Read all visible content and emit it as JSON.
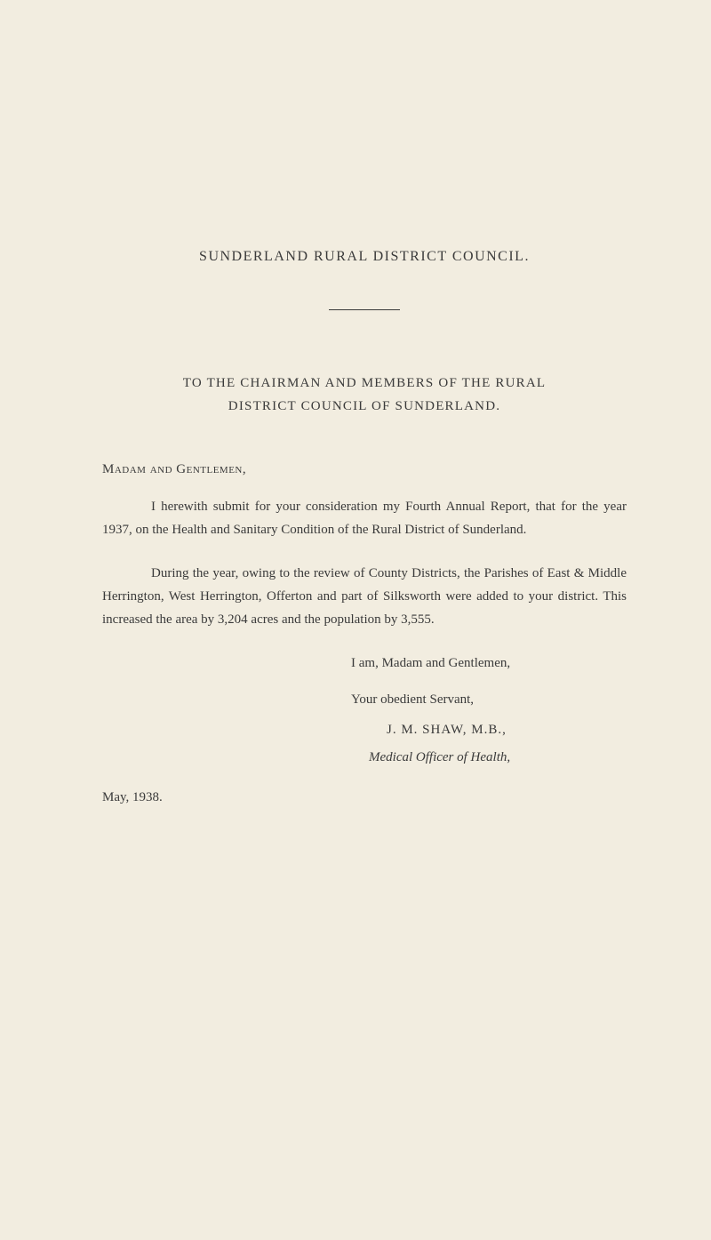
{
  "colors": {
    "background": "#f2ede0",
    "text": "#3a3a3a"
  },
  "typography": {
    "body_fontsize": 15,
    "title_fontsize": 16,
    "line_height": 1.75,
    "title_letter_spacing": 1.5
  },
  "title": "SUNDERLAND RURAL DISTRICT COUNCIL.",
  "addressee": {
    "line1": "TO THE CHAIRMAN AND MEMBERS OF THE RURAL",
    "line2": "DISTRICT COUNCIL OF SUNDERLAND."
  },
  "salutation": "Madam and Gentlemen,",
  "paragraphs": {
    "p1": "I herewith submit for your consideration my Fourth Annual Report, that for the year 1937, on the Health and Sanitary Condition of the Rural District of Sunderland.",
    "p2": "During the year, owing to the review of County Districts, the Parishes of East & Middle Herrington, West Herrington, Offerton and part of Silksworth were added to your district. This increased the area by 3,204 acres and the population by 3,555."
  },
  "closing": {
    "line1": "I am, Madam and Gentlemen,",
    "line2": "Your obedient Servant,",
    "signature": "J. M. SHAW, M.B.,",
    "role": "Medical Officer of Health,"
  },
  "date": "May, 1938."
}
